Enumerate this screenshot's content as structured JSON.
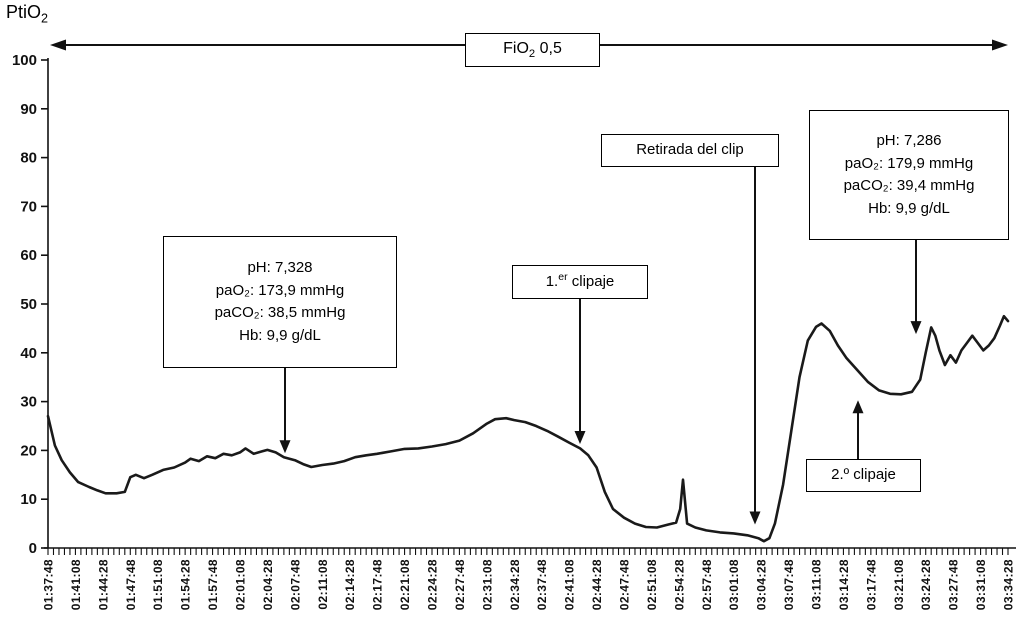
{
  "page": {
    "y_axis_title": {
      "text": "PtiO",
      "sub": "2"
    },
    "fio2_banner": {
      "text": "FiO",
      "sub": "2",
      "suffix": " 0,5"
    }
  },
  "chart_data": {
    "type": "line",
    "title": "",
    "ylabel": "PtiO₂",
    "xlabel": "",
    "ylim": [
      0,
      100
    ],
    "y_ticks": [
      0,
      10,
      20,
      30,
      40,
      50,
      60,
      70,
      80,
      90,
      100
    ],
    "x_tick_labels": [
      "01:37:48",
      "01:41:08",
      "01:44:28",
      "01:47:48",
      "01:51:08",
      "01:54:28",
      "01:57:48",
      "02:01:08",
      "02:04:28",
      "02:07:48",
      "02:11:08",
      "02:14:28",
      "02:17:48",
      "02:21:08",
      "02:24:28",
      "02:27:48",
      "02:31:08",
      "02:34:28",
      "02:37:48",
      "02:41:08",
      "02:44:28",
      "02:47:48",
      "02:51:08",
      "02:54:28",
      "02:57:48",
      "03:01:08",
      "03:04:28",
      "03:07:48",
      "03:11:08",
      "03:14:28",
      "03:17:48",
      "03:21:08",
      "03:24:28",
      "03:27:48",
      "03:31:08",
      "03:34:28"
    ],
    "fio2_label": "FiO₂ 0,5",
    "series": [
      {
        "name": "PtiO₂",
        "points": [
          [
            0,
            27
          ],
          [
            0.25,
            21
          ],
          [
            0.5,
            18
          ],
          [
            0.8,
            15.5
          ],
          [
            1.1,
            13.5
          ],
          [
            1.5,
            12.5
          ],
          [
            1.8,
            11.8
          ],
          [
            2.1,
            11.2
          ],
          [
            2.5,
            11.2
          ],
          [
            2.8,
            11.5
          ],
          [
            3.0,
            14.5
          ],
          [
            3.2,
            15
          ],
          [
            3.5,
            14.3
          ],
          [
            3.8,
            15
          ],
          [
            4.2,
            16
          ],
          [
            4.6,
            16.5
          ],
          [
            5.0,
            17.5
          ],
          [
            5.2,
            18.3
          ],
          [
            5.5,
            17.8
          ],
          [
            5.8,
            18.8
          ],
          [
            6.1,
            18.4
          ],
          [
            6.4,
            19.3
          ],
          [
            6.7,
            19.0
          ],
          [
            7.0,
            19.6
          ],
          [
            7.2,
            20.4
          ],
          [
            7.5,
            19.3
          ],
          [
            7.8,
            19.8
          ],
          [
            8.0,
            20.1
          ],
          [
            8.3,
            19.6
          ],
          [
            8.6,
            18.6
          ],
          [
            9.0,
            18.0
          ],
          [
            9.3,
            17.2
          ],
          [
            9.6,
            16.6
          ],
          [
            10.0,
            17.0
          ],
          [
            10.4,
            17.3
          ],
          [
            10.8,
            17.8
          ],
          [
            11.2,
            18.6
          ],
          [
            11.6,
            19.0
          ],
          [
            12.0,
            19.3
          ],
          [
            12.5,
            19.8
          ],
          [
            13.0,
            20.3
          ],
          [
            13.5,
            20.4
          ],
          [
            14.0,
            20.8
          ],
          [
            14.5,
            21.3
          ],
          [
            15.0,
            22.0
          ],
          [
            15.5,
            23.5
          ],
          [
            16.0,
            25.5
          ],
          [
            16.3,
            26.4
          ],
          [
            16.7,
            26.6
          ],
          [
            17.0,
            26.2
          ],
          [
            17.4,
            25.8
          ],
          [
            17.8,
            25.0
          ],
          [
            18.2,
            24.0
          ],
          [
            18.6,
            22.8
          ],
          [
            19.0,
            21.6
          ],
          [
            19.4,
            20.4
          ],
          [
            19.7,
            19.0
          ],
          [
            20.0,
            16.5
          ],
          [
            20.3,
            11.5
          ],
          [
            20.6,
            8.0
          ],
          [
            21.0,
            6.2
          ],
          [
            21.4,
            5.0
          ],
          [
            21.8,
            4.3
          ],
          [
            22.2,
            4.2
          ],
          [
            22.6,
            4.8
          ],
          [
            22.9,
            5.2
          ],
          [
            23.05,
            8
          ],
          [
            23.15,
            14
          ],
          [
            23.3,
            5.0
          ],
          [
            23.6,
            4.2
          ],
          [
            24.0,
            3.6
          ],
          [
            24.5,
            3.2
          ],
          [
            25.0,
            3.0
          ],
          [
            25.5,
            2.6
          ],
          [
            25.9,
            2.0
          ],
          [
            26.1,
            1.4
          ],
          [
            26.3,
            2.0
          ],
          [
            26.5,
            5.0
          ],
          [
            26.8,
            13
          ],
          [
            27.1,
            24
          ],
          [
            27.4,
            35
          ],
          [
            27.7,
            42.5
          ],
          [
            28.0,
            45.3
          ],
          [
            28.2,
            46.0
          ],
          [
            28.5,
            44.5
          ],
          [
            28.8,
            41.5
          ],
          [
            29.1,
            39.0
          ],
          [
            29.5,
            36.5
          ],
          [
            29.9,
            34.0
          ],
          [
            30.3,
            32.3
          ],
          [
            30.7,
            31.6
          ],
          [
            31.1,
            31.5
          ],
          [
            31.5,
            32.0
          ],
          [
            31.8,
            34.5
          ],
          [
            32.0,
            40
          ],
          [
            32.2,
            45.2
          ],
          [
            32.35,
            43.5
          ],
          [
            32.5,
            40.5
          ],
          [
            32.7,
            37.5
          ],
          [
            32.9,
            39.5
          ],
          [
            33.1,
            38.0
          ],
          [
            33.3,
            40.5
          ],
          [
            33.5,
            42.0
          ],
          [
            33.7,
            43.5
          ],
          [
            33.9,
            42.0
          ],
          [
            34.1,
            40.5
          ],
          [
            34.3,
            41.5
          ],
          [
            34.5,
            43.0
          ],
          [
            34.7,
            45.5
          ],
          [
            34.85,
            47.5
          ],
          [
            35.0,
            46.5
          ]
        ]
      }
    ],
    "annotations": [
      {
        "id": "gas1",
        "lines": [
          "pH: 7,328",
          "paO₂: 173,9 mmHg",
          "paCO₂: 38,5 mmHg",
          "Hb: 9,9 g/dL"
        ],
        "target": {
          "i": 8.6,
          "v": 18.6
        },
        "arrow": "down"
      },
      {
        "id": "clip1",
        "prefix": "1.",
        "sup": "er",
        "suffix": " clipaje",
        "target": {
          "i": 19.4,
          "v": 20.5
        },
        "arrow": "down"
      },
      {
        "id": "retirada",
        "label": "Retirada del clip",
        "target": {
          "i": 25.8,
          "v": 4
        },
        "arrow": "down"
      },
      {
        "id": "gas2",
        "lines": [
          "pH: 7,286",
          "paO₂: 179,9 mmHg",
          "paCO₂: 39,4 mmHg",
          "Hb: 9,9 g/dL"
        ],
        "target": {
          "i": 31.8,
          "v": 43
        },
        "arrow": "down"
      },
      {
        "id": "clip2",
        "label": "2.º clipaje",
        "target": {
          "i": 29.5,
          "v": 31.5
        },
        "arrow": "up"
      }
    ]
  }
}
